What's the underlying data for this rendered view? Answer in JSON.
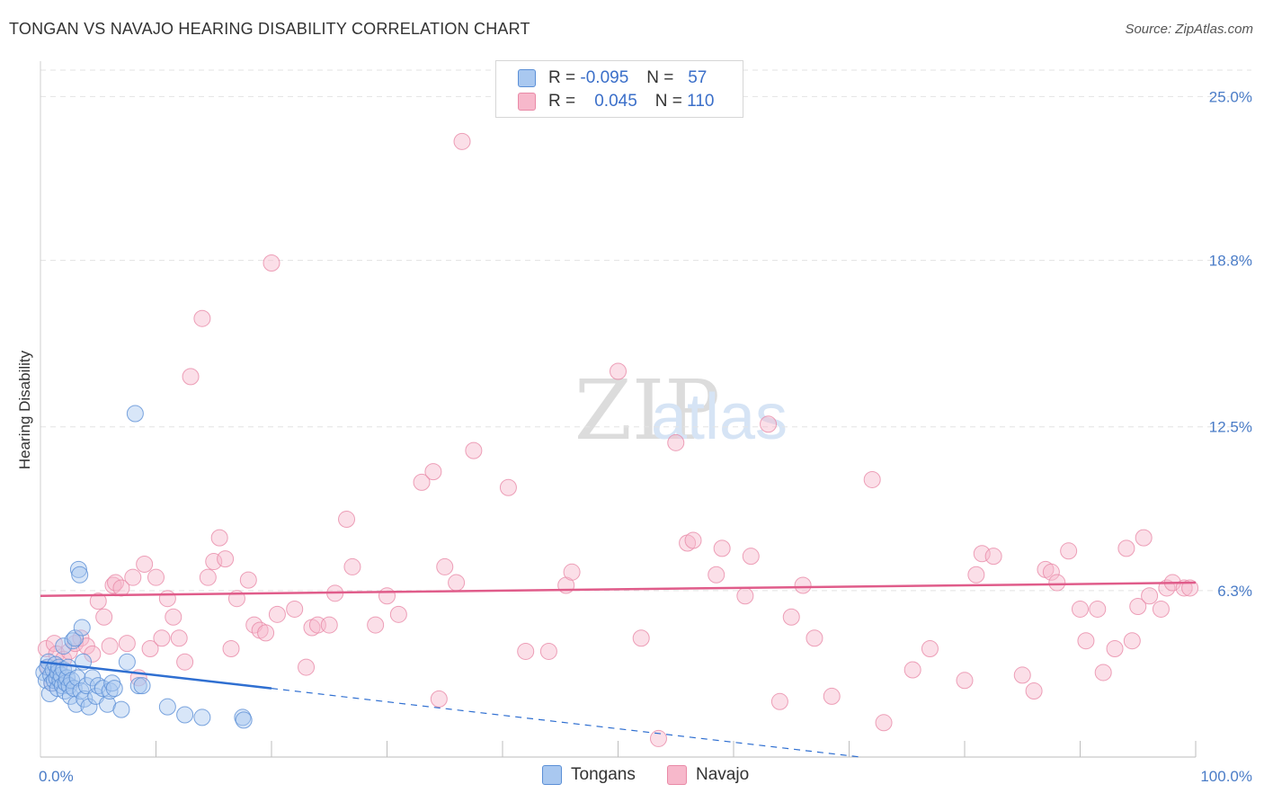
{
  "title": "TONGAN VS NAVAJO HEARING DISABILITY CORRELATION CHART",
  "source": "Source: ZipAtlas.com",
  "watermark": {
    "zip": "ZIP",
    "atlas": "atlas"
  },
  "colors": {
    "tongans_fill": "#a9c8f0",
    "tongans_stroke": "#5b8fd6",
    "tongans_line": "#2f6fd1",
    "navajo_fill": "#f7b8cb",
    "navajo_stroke": "#e98aa7",
    "navajo_line": "#e05c8a",
    "axis_label": "#4a7cc7",
    "grid": "#e3e3e3"
  },
  "legend": {
    "rows": [
      {
        "r_label": "R =",
        "r_value": "-0.095",
        "n_label": "N =",
        "n_value": "57"
      },
      {
        "r_label": "R =",
        "r_value": "0.045",
        "n_label": "N =",
        "n_value": "110"
      }
    ]
  },
  "bottom_legend": {
    "tongans": "Tongans",
    "navajo": "Navajo"
  },
  "chart_data": {
    "type": "scatter",
    "title": "TONGAN VS NAVAJO HEARING DISABILITY CORRELATION CHART",
    "xlabel": "",
    "ylabel": "Hearing Disability",
    "xlim": [
      0,
      100
    ],
    "ylim": [
      0,
      26
    ],
    "x_tick_labels": [
      "0.0%",
      "100.0%"
    ],
    "y_ticks": [
      6.3,
      12.5,
      18.8,
      25.0
    ],
    "y_tick_labels": [
      "6.3%",
      "12.5%",
      "18.8%",
      "25.0%"
    ],
    "grid": true,
    "legend_position": "top-center",
    "series": [
      {
        "name": "Tongans",
        "r": -0.095,
        "n": 57,
        "trend": {
          "x": [
            0,
            20
          ],
          "y": [
            3.6,
            2.6
          ],
          "dashed_to": [
            71,
            0
          ]
        },
        "x": [
          0.3,
          0.5,
          0.6,
          0.7,
          0.8,
          0.9,
          1.0,
          1.1,
          1.2,
          1.3,
          1.4,
          1.5,
          1.5,
          1.6,
          1.7,
          1.8,
          1.9,
          2.0,
          2.0,
          2.1,
          2.2,
          2.3,
          2.4,
          2.5,
          2.6,
          2.7,
          2.8,
          2.9,
          3.0,
          3.1,
          3.2,
          3.3,
          3.4,
          3.5,
          3.6,
          3.7,
          3.8,
          4.0,
          4.2,
          4.5,
          4.8,
          5.0,
          5.4,
          5.8,
          6.0,
          6.2,
          6.4,
          7.0,
          7.5,
          8.2,
          8.5,
          8.8,
          11.0,
          12.5,
          14.0,
          17.5,
          17.6
        ],
        "y": [
          3.2,
          2.9,
          3.4,
          3.6,
          2.4,
          3.1,
          2.8,
          3.3,
          2.9,
          3.5,
          3.0,
          2.6,
          3.2,
          3.4,
          2.9,
          3.1,
          2.7,
          3.3,
          4.2,
          2.5,
          2.8,
          3.0,
          3.4,
          2.7,
          2.3,
          2.9,
          4.4,
          2.6,
          4.5,
          2.0,
          3.0,
          7.1,
          6.9,
          2.5,
          4.9,
          3.6,
          2.2,
          2.7,
          1.9,
          3.0,
          2.3,
          2.7,
          2.6,
          2.0,
          2.5,
          2.8,
          2.6,
          1.8,
          3.6,
          13.0,
          2.7,
          2.7,
          1.9,
          1.6,
          1.5,
          1.5,
          1.4
        ]
      },
      {
        "name": "Navajo",
        "r": 0.045,
        "n": 110,
        "trend": {
          "x": [
            0,
            100
          ],
          "y": [
            6.1,
            6.6
          ]
        },
        "x": [
          0.5,
          0.7,
          1.0,
          1.2,
          1.4,
          2.0,
          2.5,
          3.0,
          3.5,
          4.0,
          4.5,
          5.0,
          5.5,
          6.0,
          6.3,
          6.5,
          7.0,
          7.5,
          8.0,
          8.5,
          9.0,
          9.5,
          10.0,
          10.5,
          11.0,
          11.5,
          12.0,
          12.5,
          13.0,
          14.0,
          14.5,
          15.0,
          15.5,
          16.0,
          16.5,
          17.0,
          18.0,
          18.5,
          19.0,
          19.5,
          20.0,
          20.5,
          22.0,
          23.0,
          23.5,
          24.0,
          25.0,
          25.5,
          26.5,
          27.0,
          29.0,
          30.0,
          31.0,
          33.0,
          34.0,
          34.5,
          35.0,
          36.0,
          36.5,
          37.5,
          40.5,
          42.0,
          44.0,
          45.5,
          46.0,
          50.0,
          52.0,
          53.5,
          55.0,
          56.0,
          56.5,
          58.5,
          59.0,
          61.0,
          61.5,
          63.0,
          64.0,
          65.0,
          66.0,
          67.0,
          68.5,
          72.0,
          73.0,
          75.5,
          77.0,
          80.0,
          81.0,
          81.5,
          82.5,
          85.0,
          86.0,
          87.0,
          87.5,
          88.0,
          89.0,
          90.0,
          90.5,
          91.5,
          92.0,
          93.0,
          94.0,
          94.5,
          95.0,
          95.5,
          96.0,
          97.0,
          97.5,
          98.0,
          99.0,
          99.5
        ],
        "y": [
          4.1,
          3.4,
          2.8,
          4.3,
          3.9,
          3.7,
          4.0,
          4.3,
          4.5,
          4.2,
          3.9,
          5.9,
          5.3,
          4.2,
          6.5,
          6.6,
          6.4,
          4.3,
          6.8,
          3.0,
          7.3,
          4.1,
          6.8,
          4.5,
          6.0,
          5.3,
          4.5,
          3.6,
          14.4,
          16.6,
          6.8,
          7.4,
          8.3,
          7.5,
          4.1,
          6.0,
          6.7,
          5.0,
          4.8,
          4.7,
          18.7,
          5.4,
          5.6,
          3.4,
          4.9,
          5.0,
          5.0,
          6.2,
          9.0,
          7.2,
          5.0,
          6.1,
          5.4,
          10.4,
          10.8,
          2.2,
          7.2,
          6.6,
          23.3,
          11.6,
          10.2,
          4.0,
          4.0,
          6.5,
          7.0,
          14.6,
          4.5,
          0.7,
          11.9,
          8.1,
          8.2,
          6.9,
          7.9,
          6.1,
          7.6,
          12.6,
          2.1,
          5.3,
          6.5,
          4.5,
          2.3,
          10.5,
          1.3,
          3.3,
          4.1,
          2.9,
          6.9,
          7.7,
          7.6,
          3.1,
          2.5,
          7.1,
          7.0,
          6.6,
          7.8,
          5.6,
          4.4,
          5.6,
          3.2,
          4.1,
          7.9,
          4.4,
          5.7,
          8.3,
          6.1,
          5.6,
          6.4,
          6.6,
          6.4,
          6.4
        ]
      }
    ]
  }
}
